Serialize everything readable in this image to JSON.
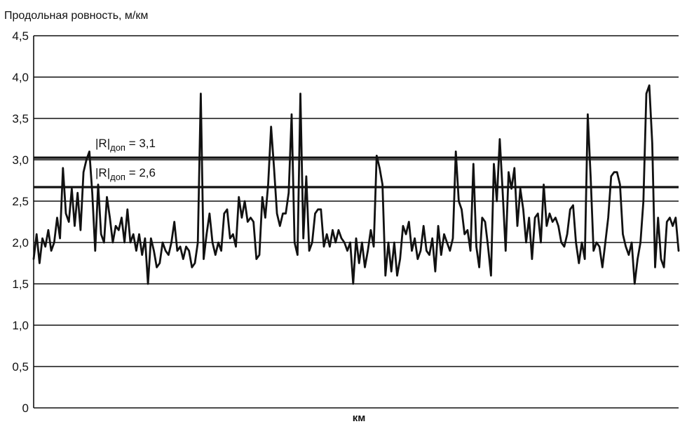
{
  "chart_data": {
    "type": "line",
    "title": "Продольная ровность, м/км",
    "xlabel": "км",
    "ylabel": "",
    "ylim": [
      0,
      4.5
    ],
    "yticks": [
      {
        "value": 0,
        "label": "0"
      },
      {
        "value": 0.5,
        "label": "0,5"
      },
      {
        "value": 1.0,
        "label": "1,0"
      },
      {
        "value": 1.5,
        "label": "1,5"
      },
      {
        "value": 2.0,
        "label": "2,0"
      },
      {
        "value": 2.5,
        "label": "2,5"
      },
      {
        "value": 3.0,
        "label": "3,0"
      },
      {
        "value": 3.5,
        "label": "3,5"
      },
      {
        "value": 4.0,
        "label": "4,0"
      },
      {
        "value": 4.5,
        "label": "4,5"
      }
    ],
    "grid": true,
    "thresholds": [
      {
        "main": "|R|",
        "sub": "доп",
        "text": " = 3,1",
        "value": 3.1
      },
      {
        "main": "|R|",
        "sub": "доп",
        "text": " = 2,6",
        "value": 2.6
      }
    ],
    "series": [
      {
        "values": [
          1.8,
          2.1,
          1.75,
          2.05,
          1.95,
          2.15,
          1.9,
          2.0,
          2.3,
          2.05,
          2.9,
          2.35,
          2.25,
          2.65,
          2.2,
          2.6,
          2.15,
          2.85,
          3.0,
          3.1,
          2.6,
          1.9,
          2.7,
          2.1,
          2.0,
          2.55,
          2.3,
          2.0,
          2.2,
          2.15,
          2.3,
          2.0,
          2.4,
          2.0,
          2.1,
          1.9,
          2.1,
          1.85,
          2.05,
          1.5,
          2.05,
          1.9,
          1.7,
          1.75,
          2.0,
          1.9,
          1.85,
          2.0,
          2.25,
          1.9,
          1.95,
          1.8,
          1.95,
          1.9,
          1.7,
          1.75,
          2.0,
          3.8,
          1.8,
          2.1,
          2.35,
          2.0,
          1.85,
          2.0,
          1.9,
          2.35,
          2.4,
          2.05,
          2.1,
          1.95,
          2.55,
          2.3,
          2.5,
          2.25,
          2.3,
          2.25,
          1.8,
          1.85,
          2.55,
          2.3,
          2.7,
          3.4,
          2.9,
          2.35,
          2.2,
          2.35,
          2.35,
          2.6,
          3.55,
          2.0,
          1.85,
          3.8,
          2.05,
          2.8,
          1.9,
          2.0,
          2.35,
          2.4,
          2.4,
          1.95,
          2.1,
          1.95,
          2.15,
          2.0,
          2.15,
          2.05,
          2.0,
          1.9,
          2.0,
          1.5,
          2.05,
          1.75,
          2.0,
          1.7,
          1.9,
          2.15,
          1.95,
          3.05,
          2.9,
          2.7,
          1.6,
          2.0,
          1.65,
          2.0,
          1.6,
          1.8,
          2.2,
          2.1,
          2.25,
          1.9,
          2.05,
          1.8,
          1.9,
          2.2,
          1.9,
          1.85,
          2.05,
          1.65,
          2.2,
          1.85,
          2.1,
          2.0,
          1.9,
          2.05,
          3.1,
          2.5,
          2.4,
          2.1,
          2.15,
          1.9,
          2.95,
          1.95,
          1.7,
          2.3,
          2.25,
          1.95,
          1.6,
          2.95,
          2.5,
          3.25,
          2.6,
          1.9,
          2.85,
          2.65,
          2.9,
          2.2,
          2.65,
          2.4,
          2.0,
          2.3,
          1.8,
          2.3,
          2.35,
          2.0,
          2.7,
          2.2,
          2.35,
          2.25,
          2.3,
          2.2,
          2.0,
          1.95,
          2.1,
          2.4,
          2.45,
          2.0,
          1.75,
          2.0,
          1.8,
          3.55,
          2.8,
          1.9,
          2.0,
          1.95,
          1.7,
          2.0,
          2.3,
          2.8,
          2.85,
          2.85,
          2.7,
          2.1,
          1.95,
          1.85,
          2.0,
          1.5,
          1.8,
          2.0,
          2.5,
          3.8,
          3.9,
          3.2,
          1.7,
          2.3,
          1.8,
          1.7,
          2.25,
          2.3,
          2.2,
          2.3,
          1.9
        ]
      }
    ]
  }
}
